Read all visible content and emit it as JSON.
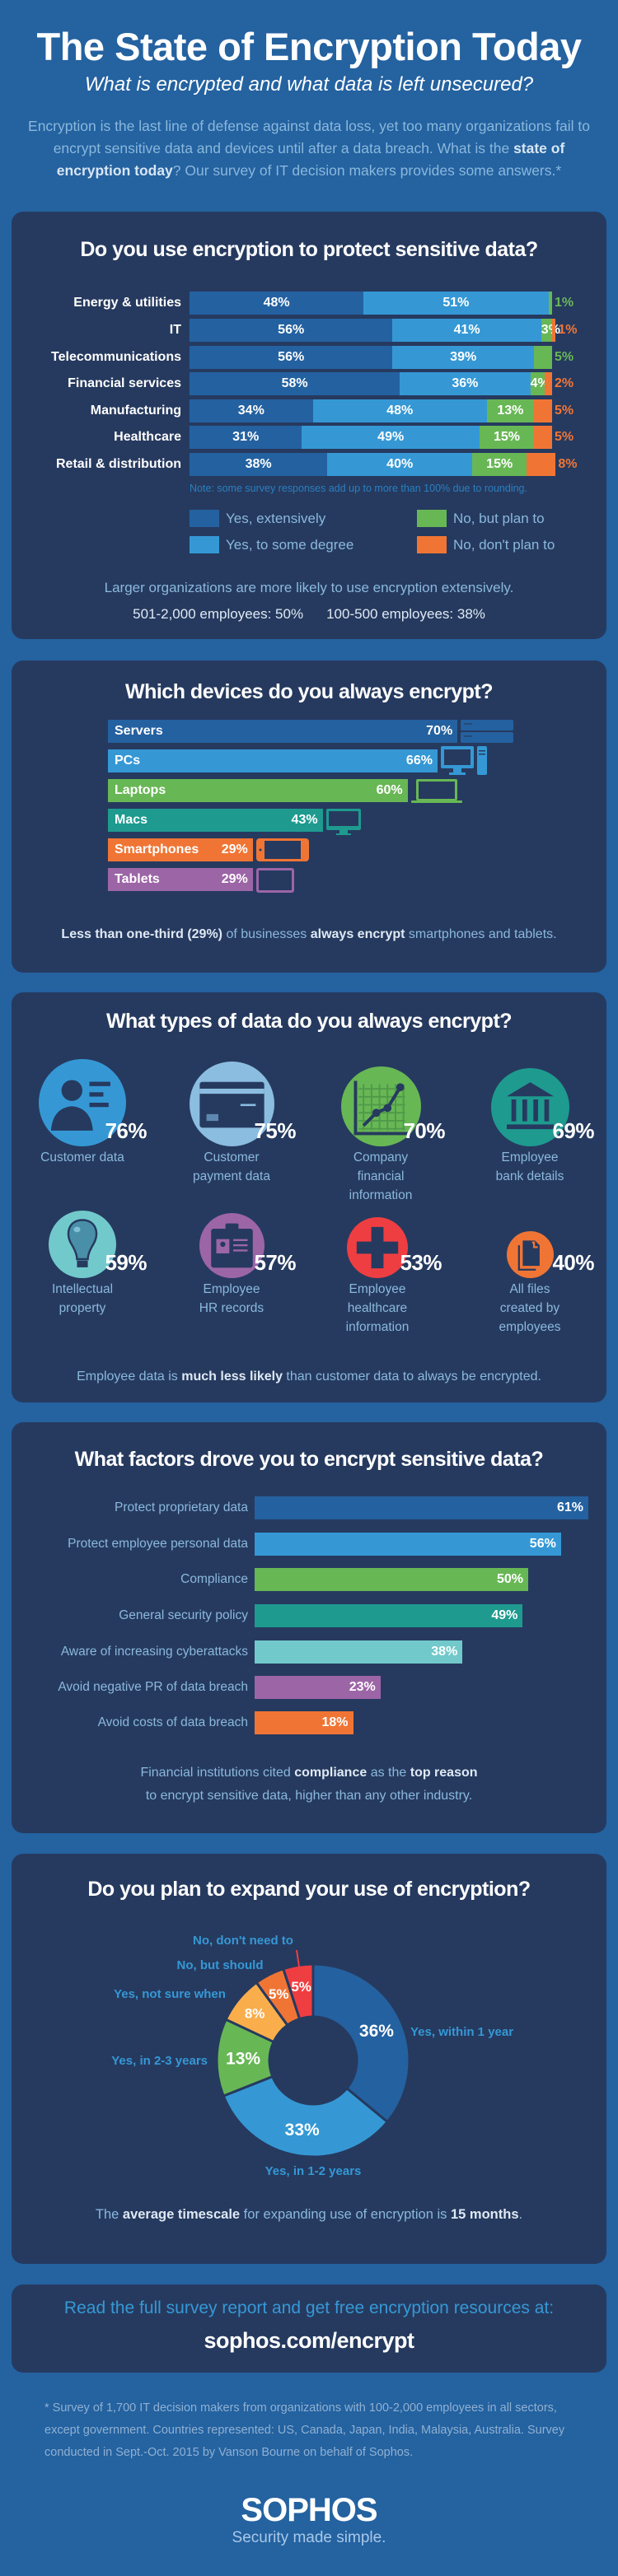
{
  "header": {
    "title": "The State of Encryption Today",
    "subtitle": "What is encrypted and what data is left unsecured?",
    "intro": [
      {
        "t": "Encryption is the last line of defense against data loss, yet too many organizations fail to encrypt sensitive data and devices until after a data breach. What is the ",
        "b": false
      },
      {
        "t": "state of encryption today",
        "b": true
      },
      {
        "t": "? Our survey of IT decision makers provides some answers.*",
        "b": false
      }
    ]
  },
  "colors": {
    "background": "#2462a0",
    "panel": "#263a5f",
    "dark_blue": "#2461a0",
    "light_blue": "#3598d5",
    "green": "#68b755",
    "orange": "#f07535",
    "teal": "#1e9a8f",
    "light_teal": "#72c9cb",
    "purple": "#9c65a6",
    "red": "#ef3e42",
    "yellow": "#f9ae4b",
    "pale_blue": "#8bbde0"
  },
  "chart_data": [
    {
      "type": "bar",
      "stacked": true,
      "orientation": "horizontal",
      "title": "Do you use encryption to protect sensitive data?",
      "categories": [
        "Energy & utilities",
        "IT",
        "Telecommunications",
        "Financial services",
        "Manufacturing",
        "Healthcare",
        "Retail & distribution"
      ],
      "series": [
        {
          "name": "Yes, extensively",
          "color": "#2461a0",
          "values": [
            48,
            56,
            56,
            58,
            34,
            31,
            38
          ]
        },
        {
          "name": "Yes, to some degree",
          "color": "#3598d5",
          "values": [
            51,
            41,
            39,
            36,
            48,
            49,
            40
          ]
        },
        {
          "name": "No, but plan to",
          "color": "#68b755",
          "values": [
            1,
            3,
            5,
            4,
            13,
            15,
            15
          ]
        },
        {
          "name": "No, don't plan to",
          "color": "#f07535",
          "values": [
            0,
            1,
            0,
            2,
            5,
            5,
            8
          ]
        }
      ],
      "note": "Note: some survey responses add up to more than 100% due to rounding.",
      "legend": "bottom",
      "footer": {
        "line1": "Larger organizations are more likely to use encryption extensively.",
        "line2a": "501-2,000 employees: 50%",
        "line2b": "100-500 employees: 38%"
      }
    },
    {
      "type": "bar",
      "orientation": "horizontal",
      "title": "Which devices do you always encrypt?",
      "categories": [
        "Servers",
        "PCs",
        "Laptops",
        "Macs",
        "Smartphones",
        "Tablets"
      ],
      "values": [
        70,
        66,
        60,
        43,
        29,
        29
      ],
      "colors": [
        "#2461a0",
        "#3598d5",
        "#68b755",
        "#1e9a8f",
        "#f07535",
        "#9c65a6"
      ],
      "icons": [
        "server-icon",
        "desktop-pc-icon",
        "laptop-icon",
        "imac-icon",
        "smartphone-icon",
        "tablet-icon"
      ],
      "footer": [
        {
          "t": "Less than one-third (29%)",
          "b": true
        },
        {
          "t": " of businesses ",
          "b": false
        },
        {
          "t": "always encrypt",
          "b": true
        },
        {
          "t": " smartphones and tablets.",
          "b": false
        }
      ]
    },
    {
      "type": "bubble",
      "title": "What types of data do you always encrypt?",
      "categories": [
        "Customer data",
        "Customer payment data",
        "Company financial information",
        "Employee bank details",
        "Intellectual property",
        "Employee HR records",
        "Employee healthcare information",
        "All files created by employees"
      ],
      "label_lines": [
        [
          "Customer data"
        ],
        [
          "Customer",
          "payment data"
        ],
        [
          "Company",
          "financial",
          "information"
        ],
        [
          "Employee",
          "bank details"
        ],
        [
          "Intellectual",
          "property"
        ],
        [
          "Employee",
          "HR records"
        ],
        [
          "Employee",
          "healthcare",
          "information"
        ],
        [
          "All files",
          "created by",
          "employees"
        ]
      ],
      "values": [
        76,
        75,
        70,
        69,
        59,
        57,
        53,
        40
      ],
      "colors": [
        "#3598d5",
        "#8bbde0",
        "#68b755",
        "#1e9a8f",
        "#72c9cb",
        "#9c65a6",
        "#ef3e42",
        "#f07535"
      ],
      "icons": [
        "customer-profile-icon",
        "credit-card-icon",
        "financial-chart-icon",
        "bank-icon",
        "lightbulb-icon",
        "id-badge-icon",
        "medical-cross-icon",
        "files-icon"
      ],
      "footer": [
        {
          "t": "Employee data is ",
          "b": false
        },
        {
          "t": "much less likely",
          "b": true
        },
        {
          "t": " than customer data to always be encrypted.",
          "b": false
        }
      ]
    },
    {
      "type": "bar",
      "orientation": "horizontal",
      "title": "What factors drove you to encrypt sensitive data?",
      "categories": [
        "Protect proprietary data",
        "Protect employee personal data",
        "Compliance",
        "General security policy",
        "Aware of increasing cyberattacks",
        "Avoid negative PR of data breach",
        "Avoid costs of data breach"
      ],
      "values": [
        61,
        56,
        50,
        49,
        38,
        23,
        18
      ],
      "colors": [
        "#2461a0",
        "#3598d5",
        "#68b755",
        "#1e9a8f",
        "#72c9cb",
        "#9c65a6",
        "#f07535"
      ],
      "footer1": [
        {
          "t": "Financial institutions cited ",
          "b": false
        },
        {
          "t": "compliance",
          "b": true
        },
        {
          "t": " as the ",
          "b": false
        },
        {
          "t": "top reason",
          "b": true
        }
      ],
      "footer2": "to encrypt sensitive data, higher than any other industry."
    },
    {
      "type": "pie",
      "donut": true,
      "title": "Do you plan to expand your use of encryption?",
      "categories": [
        "Yes, within 1 year",
        "Yes, in 1-2 years",
        "Yes, in 2-3 years",
        "Yes, not sure when",
        "No, but should",
        "No, don't need to"
      ],
      "values": [
        36,
        33,
        13,
        8,
        5,
        5
      ],
      "colors": [
        "#2461a0",
        "#3598d5",
        "#68b755",
        "#f9ae4b",
        "#f07535",
        "#ef3e42"
      ],
      "footer": [
        {
          "t": "The ",
          "b": false
        },
        {
          "t": "average timescale",
          "b": true
        },
        {
          "t": " for expanding use of encryption is ",
          "b": false
        },
        {
          "t": "15 months",
          "b": true
        },
        {
          "t": ".",
          "b": false
        }
      ]
    }
  ],
  "cta": {
    "text": "Read the full survey report and get free encryption resources at:",
    "url": "sophos.com/encrypt"
  },
  "footnote": "* Survey of 1,700 IT decision makers from organizations with 100-2,000 employees in all sectors, except government. Countries represented: US, Canada, Japan, India, Malaysia, Australia. Survey conducted in Sept.-Oct. 2015 by Vanson Bourne on behalf of Sophos.",
  "brand": {
    "logo": "SOPHOS",
    "tagline": "Security made simple."
  }
}
